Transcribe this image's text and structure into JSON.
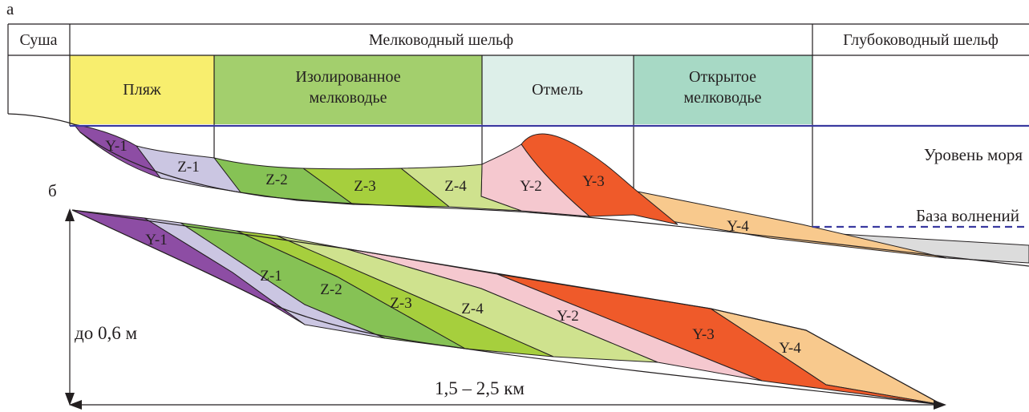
{
  "panel_labels": {
    "a": "а",
    "b": "б"
  },
  "header": {
    "land": "Суша",
    "shallow_shelf": "Мелководный шельф",
    "deep_shelf": "Глубоководный шельф"
  },
  "zones": {
    "beach": {
      "label": "Пляж",
      "color": "#f8ee6e"
    },
    "isolated": {
      "line1": "Изолированное",
      "line2": "мелководье",
      "color": "#a3cf6d"
    },
    "shoal": {
      "label": "Отмель",
      "color": "#ddefe9"
    },
    "open": {
      "line1": "Открытое",
      "line2": "мелководье",
      "color": "#a7d9c5"
    }
  },
  "levels": {
    "sea_level": "Уровень моря",
    "wave_base": "База волнений",
    "sea_level_color": "#3a3aa0"
  },
  "units": {
    "Y1": {
      "label": "Y-1",
      "color": "#8d4da4"
    },
    "Z1": {
      "label": "Z-1",
      "color": "#cbc6e2"
    },
    "Z2": {
      "label": "Z-2",
      "color": "#86c255"
    },
    "Z3": {
      "label": "Z-3",
      "color": "#a6cf3d"
    },
    "Z4": {
      "label": "Z-4",
      "color": "#cfe28e"
    },
    "Y2": {
      "label": "Y-2",
      "color": "#f5c8cf"
    },
    "Y3": {
      "label": "Y-3",
      "color": "#ef5a2a"
    },
    "Y4": {
      "label": "Y-4",
      "color": "#f8c98d"
    },
    "deep": {
      "color": "#dcdcdc"
    }
  },
  "dimensions": {
    "thickness": "до 0,6 м",
    "length": "1,5 – 2,5 км"
  }
}
